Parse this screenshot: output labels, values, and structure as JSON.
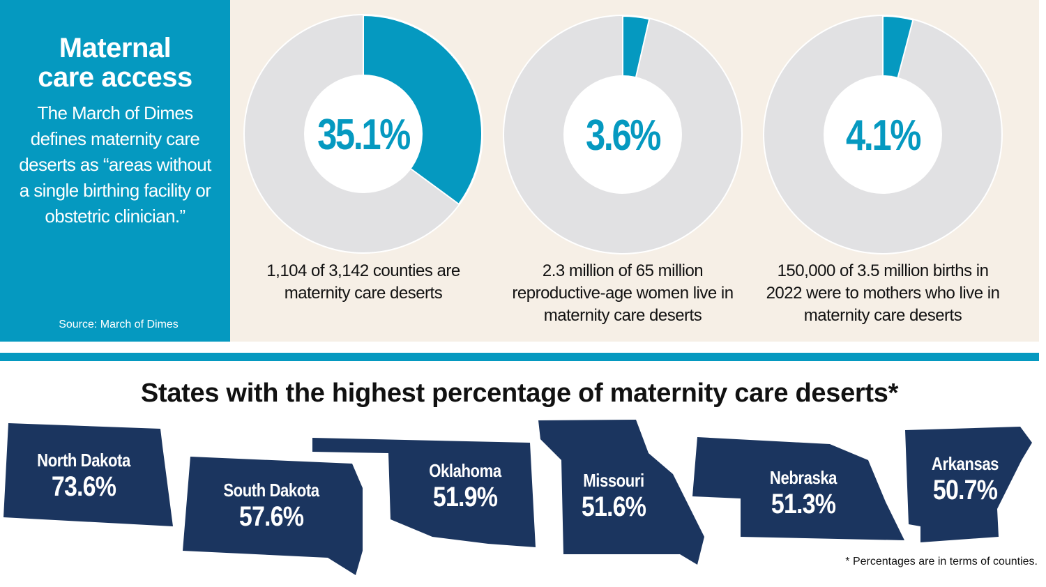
{
  "sidebar": {
    "title_line1": "Maternal",
    "title_line2": "care access",
    "description": "The March of Dimes defines maternity care deserts as “areas without a single birthing facility or obstetric clinician.”",
    "source": "Source: March of Dimes"
  },
  "colors": {
    "accent": "#0599C0",
    "remainder": "#E1E1E3",
    "background": "#F6EFE6",
    "state_fill": "#1B355F"
  },
  "chart_data": [
    {
      "type": "pie",
      "style": "donut",
      "values": [
        35.1,
        64.9
      ],
      "data_label": "35.1%",
      "caption": "1,104 of 3,142 counties are maternity care deserts"
    },
    {
      "type": "pie",
      "style": "donut",
      "values": [
        3.6,
        96.4
      ],
      "data_label": "3.6%",
      "caption": "2.3 million of 65 million reproductive-age women live in maternity care deserts"
    },
    {
      "type": "pie",
      "style": "donut",
      "values": [
        4.1,
        95.9
      ],
      "data_label": "4.1%",
      "caption": "150,000 of 3.5 million births in 2022 were to mothers who live in maternity care deserts"
    },
    {
      "type": "table",
      "title": "States with the highest percentage of maternity care deserts*",
      "rows": [
        {
          "state": "North Dakota",
          "value": "73.6%"
        },
        {
          "state": "South Dakota",
          "value": "57.6%"
        },
        {
          "state": "Oklahoma",
          "value": "51.9%"
        },
        {
          "state": "Missouri",
          "value": "51.6%"
        },
        {
          "state": "Nebraska",
          "value": "51.3%"
        },
        {
          "state": "Arkansas",
          "value": "50.7%"
        }
      ],
      "footnote": "* Percentages are in terms of counties."
    }
  ]
}
